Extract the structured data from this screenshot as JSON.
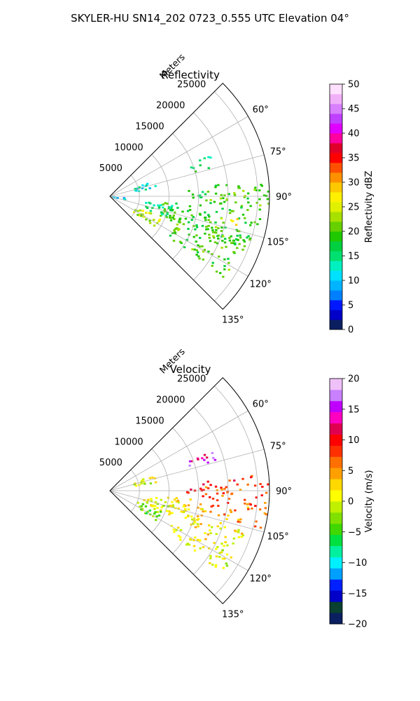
{
  "suptitle": "SKYLER-HU  SN14_202  0723_0.555 UTC Elevation 04°",
  "chart_data": [
    {
      "type": "heatmap",
      "title": "Reflectivity",
      "range_axis_label": "Meters",
      "range_ticks": [
        5000,
        10000,
        15000,
        20000,
        25000
      ],
      "range_tick_labels": [
        "5000",
        "10000",
        "15000",
        "20000",
        "25000"
      ],
      "range_max": 27000,
      "azimuth_range_deg": [
        45,
        135
      ],
      "azimuth_ticks_deg": [
        60,
        75,
        90,
        105,
        120,
        135
      ],
      "azimuth_tick_labels": [
        "60°",
        "75°",
        "90°",
        "105°",
        "120°",
        "135°"
      ],
      "grid": true,
      "colorbar": {
        "label": "Reflectivity dBZ",
        "vmin": 0,
        "vmax": 50,
        "ticks": [
          0,
          5,
          10,
          15,
          20,
          25,
          30,
          35,
          40,
          45,
          50
        ],
        "tick_labels": [
          "0",
          "5",
          "10",
          "15",
          "20",
          "25",
          "30",
          "35",
          "40",
          "45",
          "50"
        ],
        "colors": [
          "#0a1f60",
          "#0000c8",
          "#0018ff",
          "#0080ff",
          "#00b4ff",
          "#00e0ff",
          "#00f0c0",
          "#00e070",
          "#00d040",
          "#20c800",
          "#66d000",
          "#a8e000",
          "#e0f000",
          "#fff000",
          "#ffc800",
          "#ff9000",
          "#ff5000",
          "#ff0000",
          "#e0002a",
          "#ff00a0",
          "#e000ff",
          "#c040ff",
          "#d880ff",
          "#f0b0f8",
          "#ffe0ff"
        ]
      },
      "regions": [
        {
          "az": [
            84,
            96
          ],
          "r": [
            15000,
            27000
          ],
          "value": 20
        },
        {
          "az": [
            96,
            112
          ],
          "r": [
            9000,
            26000
          ],
          "value": 19
        },
        {
          "az": [
            100,
            105
          ],
          "r": [
            19000,
            22000
          ],
          "value": 27
        },
        {
          "az": [
            106,
            126
          ],
          "r": [
            12000,
            24000
          ],
          "value": 20
        },
        {
          "az": [
            112,
            124
          ],
          "r": [
            4500,
            9500
          ],
          "value": 24
        },
        {
          "az": [
            98,
            110
          ],
          "r": [
            6000,
            11000
          ],
          "value": 15
        },
        {
          "az": [
            68,
            75
          ],
          "r": [
            14000,
            19000
          ],
          "value": 16
        },
        {
          "az": [
            70,
            80
          ],
          "r": [
            4000,
            8000
          ],
          "value": 12
        },
        {
          "az": [
            95,
            105
          ],
          "r": [
            300,
            3000
          ],
          "value": 10
        },
        {
          "az": [
            86,
            92
          ],
          "r": [
            13000,
            16000
          ],
          "value": 17
        }
      ]
    },
    {
      "type": "heatmap",
      "title": "Velocity",
      "range_axis_label": "Meters",
      "range_ticks": [
        5000,
        10000,
        15000,
        20000,
        25000
      ],
      "range_tick_labels": [
        "5000",
        "10000",
        "15000",
        "20000",
        "25000"
      ],
      "range_max": 27000,
      "azimuth_range_deg": [
        45,
        135
      ],
      "azimuth_ticks_deg": [
        60,
        75,
        90,
        105,
        120,
        135
      ],
      "azimuth_tick_labels": [
        "60°",
        "75°",
        "90°",
        "105°",
        "120°",
        "135°"
      ],
      "grid": true,
      "colorbar": {
        "label": "Velocity (m/s)",
        "vmin": -20,
        "vmax": 20,
        "ticks": [
          -20,
          -15,
          -10,
          -5,
          0,
          5,
          10,
          15,
          20
        ],
        "tick_labels": [
          "−20",
          "−15",
          "−10",
          "−5",
          "0",
          "5",
          "10",
          "15",
          "20"
        ],
        "colors": [
          "#0a1f60",
          "#0a4030",
          "#0000c8",
          "#0020ff",
          "#00a0ff",
          "#00f0ff",
          "#00f0a0",
          "#00e040",
          "#40d800",
          "#80e000",
          "#c0f000",
          "#ffff00",
          "#ffd800",
          "#ffa000",
          "#ff7000",
          "#ff3000",
          "#ff0000",
          "#e00050",
          "#ff00c0",
          "#c000ff",
          "#c880ff",
          "#f0c0f8"
        ]
      },
      "regions": [
        {
          "az": [
            84,
            96
          ],
          "r": [
            15000,
            27000
          ],
          "value": 8
        },
        {
          "az": [
            96,
            104
          ],
          "r": [
            17000,
            27000
          ],
          "value": 6
        },
        {
          "az": [
            96,
            112
          ],
          "r": [
            9000,
            17000
          ],
          "value": 2
        },
        {
          "az": [
            106,
            126
          ],
          "r": [
            12000,
            24000
          ],
          "value": 1
        },
        {
          "az": [
            112,
            124
          ],
          "r": [
            4500,
            9500
          ],
          "value": -3
        },
        {
          "az": [
            98,
            110
          ],
          "r": [
            6000,
            11000
          ],
          "value": 0
        },
        {
          "az": [
            68,
            75
          ],
          "r": [
            14000,
            19000
          ],
          "value": 15
        },
        {
          "az": [
            70,
            80
          ],
          "r": [
            4000,
            8000
          ],
          "value": 0
        },
        {
          "az": [
            86,
            92
          ],
          "r": [
            13000,
            16000
          ],
          "value": 9
        }
      ]
    }
  ]
}
